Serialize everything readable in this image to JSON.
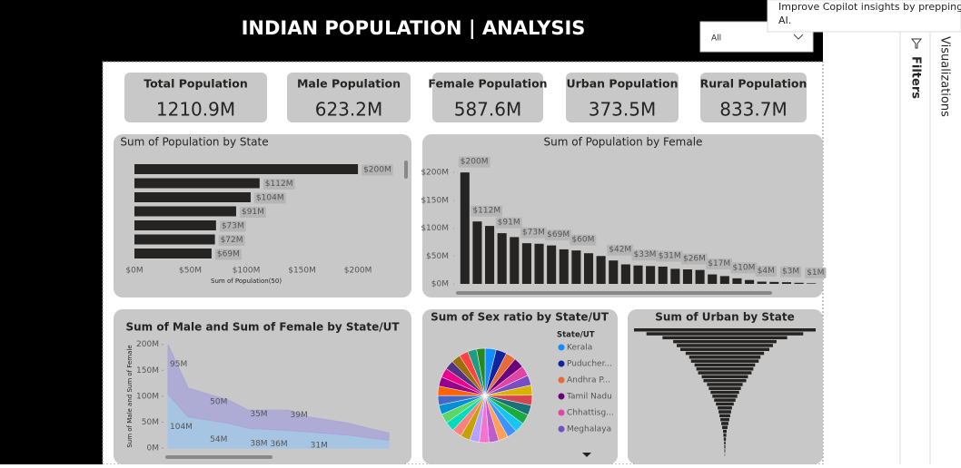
{
  "header": {
    "title": "INDIAN POPULATION | ANALYSIS",
    "dropdown": "All"
  },
  "tooltip": {
    "lines": [
      "Improve Copilot insights by prepping",
      "AI."
    ]
  },
  "panes": [
    "Filters",
    "Visualizations"
  ],
  "kpis": [
    {
      "label": "Total Population",
      "value": "1210.9M"
    },
    {
      "label": "Male Population",
      "value": "623.2M"
    },
    {
      "label": "Female Population",
      "value": "587.6M"
    },
    {
      "label": "Urban Population",
      "value": "373.5M"
    },
    {
      "label": "Rural Population",
      "value": "833.7M"
    }
  ],
  "chart_data": [
    {
      "type": "hbar",
      "title": "Sum of Population by State",
      "xlabel": "Sum of Population(50)",
      "color": "#252423",
      "categories": [
        null,
        null,
        null,
        null,
        null,
        null,
        null
      ],
      "values": [
        200,
        112,
        104,
        91,
        73,
        72,
        69
      ],
      "value_labels": [
        "$200M",
        "$112M",
        "$104M",
        "$91M",
        "$73M",
        "$72M",
        "$69M"
      ],
      "xlim": [
        0,
        230
      ],
      "xticks": [
        {
          "value": 0,
          "label": "$0M"
        },
        {
          "value": 50,
          "label": "$50M"
        },
        {
          "value": 100,
          "label": "$100M"
        },
        {
          "value": 150,
          "label": "$150M"
        },
        {
          "value": 200,
          "label": "$200M"
        }
      ]
    },
    {
      "type": "bar",
      "title": "Sum of Population by Female",
      "color": "#252423",
      "categories": [
        null,
        null,
        null,
        null,
        null,
        null,
        null,
        null,
        null,
        null,
        null,
        null,
        null,
        null,
        null,
        null,
        null,
        null,
        null,
        null,
        null,
        null,
        null,
        null,
        null,
        null,
        null,
        null,
        null
      ],
      "values": [
        200,
        112,
        104,
        91,
        84,
        73,
        72,
        69,
        62,
        60,
        55,
        50,
        42,
        35,
        33,
        32,
        31,
        27,
        26,
        25,
        17,
        14,
        10,
        7,
        4,
        3.5,
        3,
        2,
        1
      ],
      "value_labels": [
        "$200M",
        "$112M",
        null,
        "$91M",
        null,
        "$73M",
        null,
        "$69M",
        null,
        "$60M",
        null,
        null,
        "$42M",
        null,
        "$33M",
        null,
        "$31M",
        null,
        "$26M",
        null,
        "$17M",
        null,
        "$10M",
        null,
        "$4M",
        null,
        "$3M",
        null,
        "$1M"
      ],
      "ylim": [
        0,
        210
      ],
      "yticks": [
        {
          "value": 0,
          "label": "$0M"
        },
        {
          "value": 50,
          "label": "$50M"
        },
        {
          "value": 100,
          "label": "$100M"
        },
        {
          "value": 150,
          "label": "$150M"
        },
        {
          "value": 200,
          "label": "$200M"
        }
      ]
    },
    {
      "type": "stacked_area",
      "title": "Sum of Male and Sum of Female by State/UT",
      "ylabel": "Sum of Male and Sum of Female",
      "categories": [
        null,
        null,
        null,
        null,
        null,
        null,
        null,
        null,
        null,
        null,
        null,
        null
      ],
      "series": [
        {
          "color": "#9fc4e8",
          "values": [
            104,
            60,
            54,
            48,
            38,
            36,
            34,
            31,
            28,
            25,
            20,
            15
          ],
          "value_labels": [
            "104M",
            null,
            "54M",
            null,
            "38M",
            "36M",
            null,
            "31M",
            null,
            null,
            null,
            null
          ]
        },
        {
          "color": "#a9a6d6",
          "values": [
            95,
            56,
            50,
            45,
            35,
            37,
            39,
            29,
            26,
            23,
            18,
            14
          ],
          "value_labels": [
            "95M",
            null,
            "50M",
            null,
            "35M",
            null,
            "39M",
            null,
            null,
            null,
            null,
            null
          ]
        }
      ],
      "ylim": [
        0,
        210
      ],
      "yticks": [
        {
          "value": 0,
          "label": "0M"
        },
        {
          "value": 50,
          "label": "50M"
        },
        {
          "value": 100,
          "label": "100M"
        },
        {
          "value": 150,
          "label": "150M"
        },
        {
          "value": 200,
          "label": "200M"
        }
      ]
    },
    {
      "type": "pie",
      "title": "Sum of Sex ratio by State/UT",
      "legend_title": "State/UT",
      "categories": [
        "Kerala",
        "Puducher...",
        "Andhra P...",
        "Tamil Nadu",
        "Chhattisg...",
        "Meghalaya",
        null,
        null,
        null,
        null,
        null,
        null,
        null,
        null,
        null,
        null,
        null,
        null,
        null,
        null,
        null,
        null,
        null,
        null,
        null,
        null,
        null,
        null,
        null,
        null
      ],
      "values": [
        1084,
        1037,
        993,
        996,
        991,
        989,
        979,
        976,
        973,
        968,
        958,
        953,
        950,
        948,
        940,
        938,
        933,
        931,
        930,
        929,
        928,
        925,
        919,
        918,
        908,
        895,
        889,
        879,
        877,
        818
      ],
      "colors": [
        "#118DFF",
        "#12239E",
        "#E66C37",
        "#6B007B",
        "#E044A7",
        "#744EC2",
        "#D9B300",
        "#D64550",
        "#197278",
        "#1AAB40",
        "#15C6F4",
        "#4092FF",
        "#FFA058",
        "#BE5DC9",
        "#F472D0",
        "#B5A1FF",
        "#C4A200",
        "#FF8080",
        "#00DBBC",
        "#5BD667",
        "#0091D5",
        "#4668C5",
        "#FF6300",
        "#99008A",
        "#EC008C",
        "#533285",
        "#99700A",
        "#FF4141",
        "#1F9A85",
        "#25891C"
      ]
    },
    {
      "type": "funnel",
      "title": "Sum of Urban by State",
      "color": "#252423",
      "categories": [
        null,
        null,
        null,
        null,
        null,
        null,
        null,
        null,
        null,
        null,
        null,
        null,
        null,
        null,
        null,
        null,
        null,
        null,
        null,
        null,
        null,
        null,
        null,
        null,
        null,
        null,
        null,
        null,
        null,
        null,
        null,
        null,
        null
      ],
      "values": [
        51,
        44,
        35,
        29,
        27,
        25,
        22,
        20,
        19,
        17,
        16,
        15,
        13,
        12,
        10,
        9,
        8,
        7,
        6,
        5,
        4,
        3.5,
        3,
        2.5,
        2,
        1.5,
        1,
        0.8,
        0.6,
        0.4,
        0.3,
        0.2,
        0.1
      ]
    }
  ]
}
